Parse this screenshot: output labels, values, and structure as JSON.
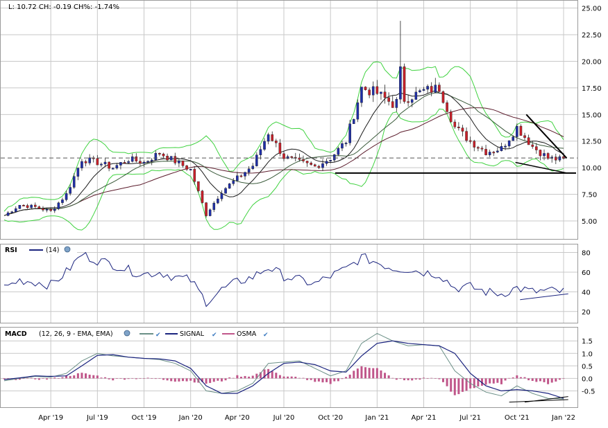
{
  "header": {
    "ohlc": "L: 10.72 CH: -0.19 CH%: -1.74%"
  },
  "legend": {
    "rsi_label": "RSI",
    "rsi_params": "(14)",
    "macd_label": "MACD",
    "macd_params": "(12, 26, 9 - EMA, EMA)",
    "signal_label": "SIGNAL",
    "osma_label": "OSMA"
  },
  "colors": {
    "up_candle": "#1f2fa8",
    "down_candle": "#c8202a",
    "bollinger": "#3fd23f",
    "ma_fast": "#1a1a1a",
    "ma_mid": "#3a5a3a",
    "ma_slow": "#5a1a2a",
    "rsi_line": "#1a237e",
    "macd_line": "#6a8f86",
    "signal_line": "#1a237e",
    "osma_bar": "#c0568a",
    "last_price_line": "#555555",
    "grid": "#c8c8c8",
    "trendline": "#000000"
  },
  "chart_data": [
    {
      "type": "candlestick",
      "panel": "price",
      "x": [
        "2019-01",
        "2019-02",
        "2019-03",
        "2019-04",
        "2019-05",
        "2019-06",
        "2019-07",
        "2019-08",
        "2019-09",
        "2019-10",
        "2019-11",
        "2019-12",
        "2020-01",
        "2020-02",
        "2020-03",
        "2020-04",
        "2020-05",
        "2020-06",
        "2020-07",
        "2020-08",
        "2020-09",
        "2020-10",
        "2020-11",
        "2020-12",
        "2021-01",
        "2021-02",
        "2021-03",
        "2021-04",
        "2021-05",
        "2021-06",
        "2021-07",
        "2021-08",
        "2021-09",
        "2021-10",
        "2021-11",
        "2021-12",
        "2022-01"
      ],
      "close": [
        5.5,
        6.5,
        6.3,
        5.9,
        7.5,
        10.8,
        10.5,
        10.0,
        10.8,
        10.5,
        11.4,
        10.6,
        9.8,
        5.6,
        7.8,
        9.0,
        10.2,
        13.3,
        11.0,
        10.5,
        10.1,
        10.9,
        12.5,
        17.5,
        17.0,
        16.0,
        16.6,
        17.2,
        17.5,
        13.8,
        12.5,
        11.5,
        11.8,
        13.8,
        12.0,
        10.9,
        10.72
      ],
      "yticks": [
        5.0,
        7.5,
        10.0,
        12.5,
        15.0,
        17.5,
        20.0,
        22.5,
        25.0
      ],
      "ytick_labels": [
        "5.00",
        "7.50",
        "10.00",
        "12.50",
        "15.00",
        "17.50",
        "20.00",
        "22.50",
        "25.00"
      ],
      "ylim": [
        3.5,
        25.5
      ],
      "last_price": 10.91,
      "high_peak": 23.8,
      "support_level": 9.5
    },
    {
      "type": "line",
      "panel": "rsi",
      "series": [
        {
          "name": "RSI (14)",
          "values": [
            44,
            52,
            50,
            47,
            60,
            78,
            72,
            68,
            62,
            58,
            60,
            55,
            52,
            30,
            42,
            50,
            55,
            65,
            56,
            52,
            48,
            56,
            63,
            75,
            70,
            64,
            63,
            60,
            58,
            44,
            45,
            40,
            38,
            44,
            40,
            41,
            40
          ]
        }
      ],
      "yticks": [
        20,
        40,
        60,
        80
      ],
      "ylim": [
        10,
        86
      ]
    },
    {
      "type": "line",
      "panel": "macd",
      "series": [
        {
          "name": "MACD",
          "values": [
            -0.1,
            0.0,
            0.08,
            0.05,
            0.2,
            0.7,
            1.0,
            0.9,
            0.85,
            0.8,
            0.75,
            0.6,
            0.3,
            -0.5,
            -0.6,
            -0.5,
            -0.2,
            0.6,
            0.65,
            0.7,
            0.4,
            0.1,
            0.3,
            1.4,
            1.8,
            1.5,
            1.3,
            1.35,
            1.3,
            0.3,
            -0.2,
            -0.55,
            -0.7,
            -0.3,
            -0.6,
            -0.8,
            -0.82
          ]
        },
        {
          "name": "SIGNAL",
          "values": [
            -0.05,
            0.02,
            0.1,
            0.08,
            0.1,
            0.5,
            0.92,
            0.95,
            0.85,
            0.8,
            0.78,
            0.7,
            0.4,
            -0.3,
            -0.6,
            -0.6,
            -0.3,
            0.2,
            0.6,
            0.65,
            0.55,
            0.3,
            0.25,
            0.9,
            1.4,
            1.5,
            1.4,
            1.35,
            1.3,
            1.0,
            0.2,
            -0.3,
            -0.5,
            -0.45,
            -0.5,
            -0.6,
            -0.8
          ]
        },
        {
          "name": "OSMA",
          "values": [
            -0.05,
            -0.02,
            -0.02,
            -0.03,
            0.1,
            0.2,
            0.1,
            -0.05,
            0.0,
            0.0,
            -0.03,
            -0.1,
            -0.1,
            -0.2,
            -0.1,
            0.1,
            0.1,
            0.4,
            0.05,
            0.05,
            -0.15,
            -0.2,
            0.05,
            0.5,
            0.4,
            0.0,
            -0.1,
            0.0,
            0.0,
            -0.7,
            -0.4,
            -0.25,
            -0.2,
            0.15,
            -0.1,
            -0.2,
            -0.02
          ]
        }
      ],
      "yticks": [
        -0.5,
        0.0,
        0.5,
        1.0,
        1.5
      ],
      "ytick_labels": [
        "-0.5",
        "0.0",
        "0.5",
        "1.0",
        "1.5"
      ],
      "ylim": [
        -1.1,
        1.95
      ]
    }
  ],
  "xaxis": {
    "labels": [
      "Apr '19",
      "Jul '19",
      "Oct '19",
      "Jan '20",
      "Apr '20",
      "Jul '20",
      "Oct '20",
      "Jan '21",
      "Apr '21",
      "Jul '21",
      "Oct '21",
      "Jan '22"
    ],
    "label_months": [
      3,
      6,
      9,
      12,
      15,
      18,
      21,
      24,
      27,
      30,
      33,
      36
    ]
  }
}
